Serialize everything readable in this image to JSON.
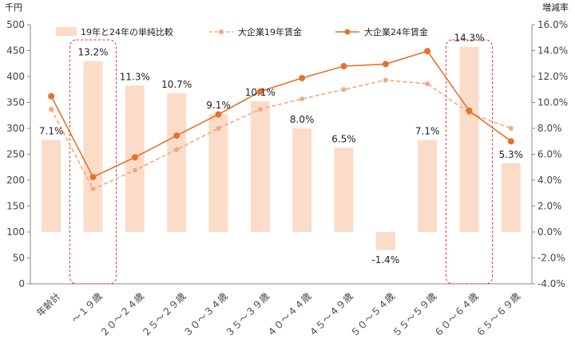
{
  "chart_data": {
    "type": "bar+line",
    "y_left_unit": "千円",
    "y_right_unit": "増減率",
    "y_left_ticks": [
      "0",
      "50",
      "100",
      "150",
      "200",
      "250",
      "300",
      "350",
      "400",
      "450",
      "500"
    ],
    "y_right_ticks": [
      "-4.0%",
      "-2.0%",
      "0.0%",
      "2.0%",
      "4.0%",
      "6.0%",
      "8.0%",
      "10.0%",
      "12.0%",
      "14.0%",
      "16.0%"
    ],
    "ylim_left": [
      0,
      500
    ],
    "ylim_right": [
      -4,
      16
    ],
    "categories": [
      "年齢計",
      "～１９歳",
      "２０～２４歳",
      "２５～２９歳",
      "３０～３４歳",
      "３５～３９歳",
      "４０～４４歳",
      "４５～４９歳",
      "５０～５４歳",
      "５５～５９歳",
      "６０～６４歳",
      "６５～６９歳"
    ],
    "series": [
      {
        "name": "19年と24年の単純比較",
        "kind": "bar",
        "axis": "right",
        "color": "#fbdcc9",
        "values": [
          7.1,
          13.2,
          11.3,
          10.7,
          9.1,
          10.1,
          8.0,
          6.5,
          -1.4,
          7.1,
          14.3,
          5.3
        ],
        "labels": [
          "7.1%",
          "13.2%",
          "11.3%",
          "10.7%",
          "9.1%",
          "10.1%",
          "8.0%",
          "6.5%",
          "-1.4%",
          "7.1%",
          "14.3%",
          "5.3%"
        ]
      },
      {
        "name": "大企業19年賃金",
        "kind": "line-dashed",
        "axis": "left",
        "color": "#f4a880",
        "values": [
          337,
          183,
          219,
          259,
          300,
          337,
          357,
          375,
          393,
          386,
          330,
          300
        ]
      },
      {
        "name": "大企業24年賃金",
        "kind": "line",
        "axis": "left",
        "color": "#e8702a",
        "values": [
          362,
          206,
          244,
          286,
          327,
          371,
          397,
          420,
          424,
          449,
          334,
          275
        ]
      }
    ],
    "highlight": {
      "categories": [
        "～１９歳",
        "６０～６４歳"
      ],
      "color": "#e8343a",
      "style": "dashed-rounded-box"
    },
    "legend_position": "top",
    "grid": false
  }
}
